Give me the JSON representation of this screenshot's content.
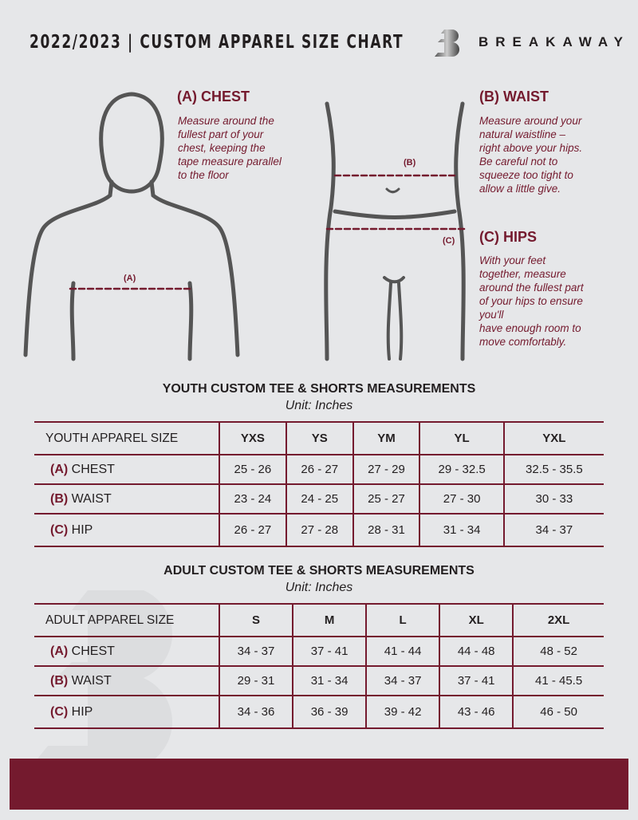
{
  "header": {
    "title": "2022/2023  |  CUSTOM APPAREL SIZE CHART",
    "brand": "BREAKAWAY"
  },
  "guides": {
    "chest": {
      "title": "(A) CHEST",
      "text": "Measure around the\nfullest part of your\nchest, keeping the\ntape measure parallel\nto the floor",
      "marker": "(A)"
    },
    "waist": {
      "title": "(B) WAIST",
      "text": "Measure around your\nnatural waistline –\nright above your hips.\nBe careful not to\nsqueeze too tight to\nallow a little give.",
      "marker": "(B)"
    },
    "hips": {
      "title": "(C) HIPS",
      "text": "With your feet\ntogether, measure\naround the fullest part\nof your hips to ensure\nyou'll\nhave enough room to\nmove comfortably.",
      "marker": "(C)"
    }
  },
  "colors": {
    "accent": "#741a2e",
    "background": "#e6e7e9"
  },
  "youth": {
    "title": "YOUTH CUSTOM TEE & SHORTS MEASUREMENTS",
    "unit": "Unit: Inches",
    "header": "YOUTH APPAREL SIZE",
    "sizes": [
      "YXS",
      "YS",
      "YM",
      "YL",
      "YXL"
    ],
    "rows": [
      {
        "code": "(A)",
        "label": "CHEST",
        "values": [
          "25 - 26",
          "26 - 27",
          "27 - 29",
          "29 - 32.5",
          "32.5 - 35.5"
        ]
      },
      {
        "code": "(B)",
        "label": "WAIST",
        "values": [
          "23 - 24",
          "24 - 25",
          "25 - 27",
          "27 - 30",
          "30 - 33"
        ]
      },
      {
        "code": "(C)",
        "label": "HIP",
        "values": [
          "26 - 27",
          "27 - 28",
          "28 - 31",
          "31 - 34",
          "34 - 37"
        ]
      }
    ]
  },
  "adult": {
    "title": "ADULT CUSTOM TEE & SHORTS MEASUREMENTS",
    "unit": "Unit: Inches",
    "header": "ADULT APPAREL SIZE",
    "sizes": [
      "S",
      "M",
      "L",
      "XL",
      "2XL"
    ],
    "rows": [
      {
        "code": "(A)",
        "label": "CHEST",
        "values": [
          "34 - 37",
          "37 - 41",
          "41 - 44",
          "44 - 48",
          "48 - 52"
        ]
      },
      {
        "code": "(B)",
        "label": "WAIST",
        "values": [
          "29 - 31",
          "31 - 34",
          "34 - 37",
          "37 - 41",
          "41 - 45.5"
        ]
      },
      {
        "code": "(C)",
        "label": "HIP",
        "values": [
          "34 - 36",
          "36 - 39",
          "39 - 42",
          "43 - 46",
          "46 - 50"
        ]
      }
    ]
  }
}
